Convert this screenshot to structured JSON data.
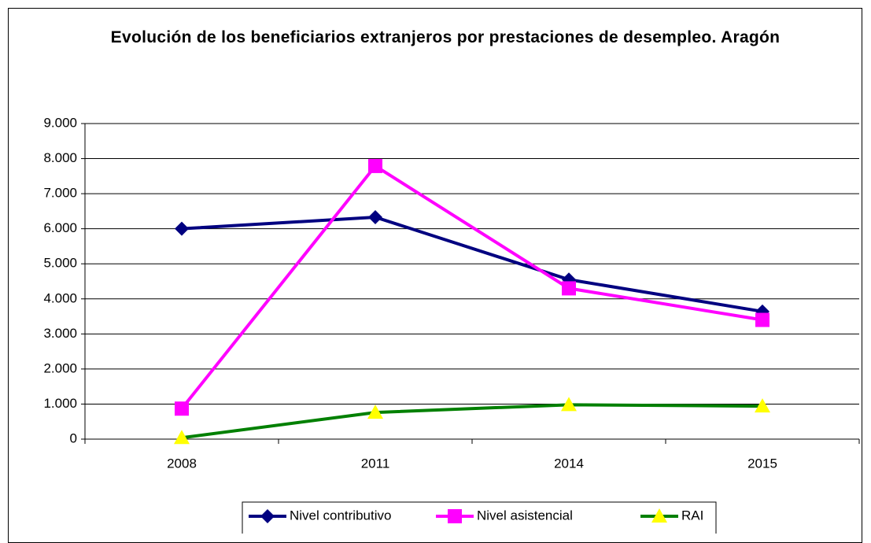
{
  "chart_data": {
    "type": "line",
    "title": "Evolución de los beneficiarios extranjeros por prestaciones de desempleo. Aragón",
    "categories": [
      "2008",
      "2011",
      "2014",
      "2015"
    ],
    "series": [
      {
        "name": "Nivel contributivo",
        "color": "#000080",
        "marker_color": "#000080",
        "marker": "diamond",
        "values": [
          6000,
          6330,
          4550,
          3640
        ]
      },
      {
        "name": "Nivel asistencial",
        "color": "#FF00FF",
        "marker_color": "#FF00FF",
        "marker": "square",
        "values": [
          870,
          7790,
          4300,
          3400
        ]
      },
      {
        "name": "RAI",
        "color": "#008000",
        "marker_color": "#FFFF00",
        "marker": "triangle",
        "values": [
          40,
          760,
          980,
          940
        ]
      }
    ],
    "ylim": [
      0,
      9000
    ],
    "yticks": [
      0,
      {
        "value": 1000,
        "label": "1.000"
      },
      {
        "value": 2000,
        "label": "2.000"
      },
      {
        "value": 3000,
        "label": "3.000"
      },
      {
        "value": 4000,
        "label": "4.000"
      },
      {
        "value": 5000,
        "label": "5.000"
      },
      {
        "value": 6000,
        "label": "6.000"
      },
      {
        "value": 7000,
        "label": "7.000"
      },
      {
        "value": 8000,
        "label": "8.000"
      },
      {
        "value": 9000,
        "label": "9.000"
      }
    ],
    "grid": true,
    "legend": "bottom"
  }
}
